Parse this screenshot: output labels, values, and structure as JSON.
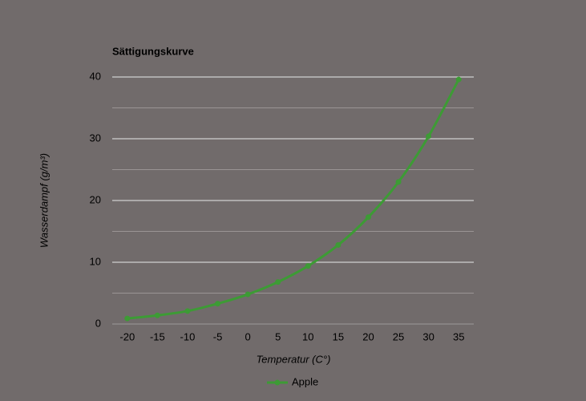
{
  "chart_data": {
    "type": "line",
    "title": "Sättigungskurve",
    "x_label": "Temperatur (C°)",
    "y_label": "Wasserdampf (g/m³)",
    "x": [
      -20,
      -15,
      -10,
      -5,
      0,
      5,
      10,
      15,
      20,
      25,
      30,
      35
    ],
    "xlim": [
      -22.5,
      37.5
    ],
    "series": [
      {
        "name": "Apple",
        "color": "#3d9b35",
        "values": [
          0.9,
          1.4,
          2.1,
          3.3,
          4.8,
          6.8,
          9.4,
          12.8,
          17.3,
          23.0,
          30.4,
          39.6
        ]
      }
    ],
    "ylim": [
      0,
      40
    ],
    "yticks": [
      0,
      10,
      20,
      30,
      40
    ],
    "yminorgrid": [
      5,
      15,
      25,
      35
    ],
    "grid": true,
    "legend": "bottom"
  }
}
